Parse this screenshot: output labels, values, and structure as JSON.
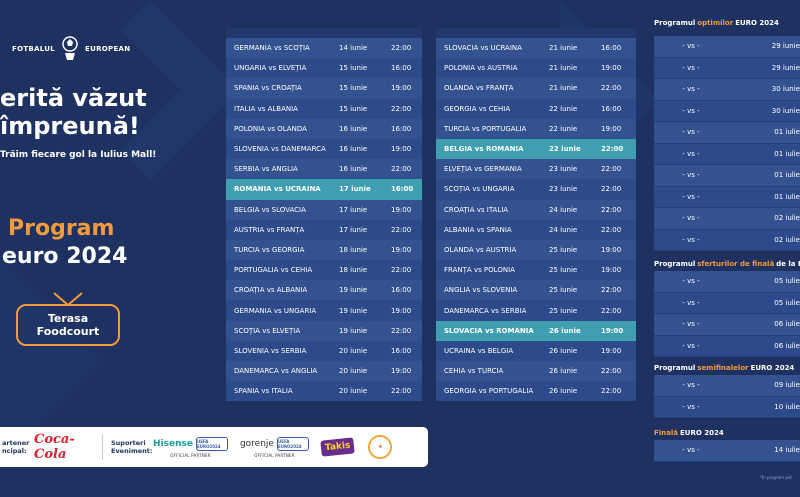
{
  "brand": {
    "left": "FOTBALUL",
    "right": "EUROPEAN"
  },
  "hero": {
    "line1": "erită văzut",
    "line2": "împreună!",
    "sub": "Trăim fiecare gol la Iulius Mall!",
    "program": "Program",
    "euro": "euro 2024",
    "venue_line1": "Terasa",
    "venue_line2": "Foodcourt"
  },
  "sponsors": {
    "principal_line1": "artener",
    "principal_line2": "ncipal:",
    "principal_name": "Coca-Cola",
    "support_line1": "Suporteri",
    "support_line2": "Eveniment:",
    "hisense": "Hisense",
    "gorenje": "gorenje",
    "official": "OFFICIAL PARTNER",
    "euro_badge": "UEFA EURO2024",
    "takis": "Takis"
  },
  "group_left": [
    {
      "match": "GERMANIA vs SCOȚIA",
      "date": "14 iunie",
      "time": "22:00"
    },
    {
      "match": "UNGARIA vs ELVEȚIA",
      "date": "15 iunie",
      "time": "16:00"
    },
    {
      "match": "SPANIA vs CROAȚIA",
      "date": "15 iunie",
      "time": "19:00"
    },
    {
      "match": "ITALIA vs ALBANIA",
      "date": "15 iunie",
      "time": "22:00"
    },
    {
      "match": "POLONIA vs OLANDA",
      "date": "16 iunie",
      "time": "16:00"
    },
    {
      "match": "SLOVENIA vs DANEMARCA",
      "date": "16 iunie",
      "time": "19:00"
    },
    {
      "match": "SERBIA vs ANGLIA",
      "date": "16 iunie",
      "time": "22:00"
    },
    {
      "match": "ROMÂNIA vs UCRAINA",
      "date": "17 iunie",
      "time": "16:00",
      "highlight": true
    },
    {
      "match": "BELGIA vs SLOVACIA",
      "date": "17 iunie",
      "time": "19:00"
    },
    {
      "match": "AUSTRIA vs FRANȚA",
      "date": "17 iunie",
      "time": "22:00"
    },
    {
      "match": "TURCIA vs GEORGIA",
      "date": "18 iunie",
      "time": "19:00"
    },
    {
      "match": "PORTUGALIA vs CEHIA",
      "date": "18 iunie",
      "time": "22:00"
    },
    {
      "match": "CROAȚIA vs ALBANIA",
      "date": "19 iunie",
      "time": "16:00"
    },
    {
      "match": "GERMANIA vs UNGARIA",
      "date": "19 iunie",
      "time": "19:00"
    },
    {
      "match": "SCOȚIA vs ELVEȚIA",
      "date": "19 iunie",
      "time": "22:00"
    },
    {
      "match": "SLOVENIA vs SERBIA",
      "date": "20 iunie",
      "time": "16:00"
    },
    {
      "match": "DANEMARCA vs ANGLIA",
      "date": "20 iunie",
      "time": "19:00"
    },
    {
      "match": "SPANIA vs ITALIA",
      "date": "20 iunie",
      "time": "22:00"
    }
  ],
  "group_right": [
    {
      "match": "SLOVACIA vs UCRAINA",
      "date": "21 iunie",
      "time": "16:00"
    },
    {
      "match": "POLONIA vs AUSTRIA",
      "date": "21 iunie",
      "time": "19:00"
    },
    {
      "match": "OLANDA vs FRANȚA",
      "date": "21 iunie",
      "time": "22:00"
    },
    {
      "match": "GEORGIA vs CEHIA",
      "date": "22 iunie",
      "time": "16:00"
    },
    {
      "match": "TURCIA vs PORTUGALIA",
      "date": "22 iunie",
      "time": "19:00"
    },
    {
      "match": "BELGIA vs ROMÂNIA",
      "date": "22 iunie",
      "time": "22:00",
      "highlight": true
    },
    {
      "match": "ELVEȚIA vs GERMANIA",
      "date": "23 iunie",
      "time": "22:00"
    },
    {
      "match": "SCOȚIA vs UNGARIA",
      "date": "23 iunie",
      "time": "22:00"
    },
    {
      "match": "CROAȚIA vs ITALIA",
      "date": "24 iunie",
      "time": "22:00"
    },
    {
      "match": "ALBANIA vs SPANIA",
      "date": "24 iunie",
      "time": "22:00"
    },
    {
      "match": "OLANDA vs AUSTRIA",
      "date": "25 iunie",
      "time": "19:00"
    },
    {
      "match": "FRANȚA vs POLONIA",
      "date": "25 iunie",
      "time": "19:00"
    },
    {
      "match": "ANGLIA vs SLOVENIA",
      "date": "25 iunie",
      "time": "22:00"
    },
    {
      "match": "DANEMARCA vs SERBIA",
      "date": "25 iunie",
      "time": "22:00"
    },
    {
      "match": "SLOVACIA vs ROMÂNIA",
      "date": "26 iunie",
      "time": "19:00",
      "highlight": true
    },
    {
      "match": "UCRAINA vs BELGIA",
      "date": "26 iunie",
      "time": "19:00"
    },
    {
      "match": "CEHIA vs TURCIA",
      "date": "26 iunie",
      "time": "22:00"
    },
    {
      "match": "GEORGIA vs PORTUGALIA",
      "date": "26 iunie",
      "time": "22:00"
    }
  ],
  "ko": {
    "r16_title_a": "Programul",
    "r16_title_b": "optimilor",
    "r16_title_c": "EURO 2024",
    "r16": [
      {
        "vs": "- vs -",
        "date": "29 iunie"
      },
      {
        "vs": "- vs -",
        "date": "29 iunie"
      },
      {
        "vs": "- vs -",
        "date": "30 iunie"
      },
      {
        "vs": "- vs -",
        "date": "30 iunie"
      },
      {
        "vs": "- vs -",
        "date": "01 iulie"
      },
      {
        "vs": "- vs -",
        "date": "01 iulie"
      },
      {
        "vs": "- vs -",
        "date": "01 iulie"
      },
      {
        "vs": "- vs -",
        "date": "01 iulie"
      },
      {
        "vs": "- vs -",
        "date": "02 iulie"
      },
      {
        "vs": "- vs -",
        "date": "02 iulie"
      }
    ],
    "qf_title_a": "Programul",
    "qf_title_b": "sferturilor de finală",
    "qf_title_c": "de la EU",
    "qf": [
      {
        "vs": "- vs -",
        "date": "05 iulie"
      },
      {
        "vs": "- vs -",
        "date": "05 iulie"
      },
      {
        "vs": "- vs -",
        "date": "06 iulie"
      },
      {
        "vs": "- vs -",
        "date": "06 iulie"
      }
    ],
    "sf_title_a": "Programul",
    "sf_title_b": "semifinalelor",
    "sf_title_c": "EURO 2024",
    "sf": [
      {
        "vs": "- vs -",
        "date": "09 iulie"
      },
      {
        "vs": "- vs -",
        "date": "10 iulie"
      }
    ],
    "f_title_a": "Finală",
    "f_title_c": "EURO 2024",
    "final": [
      {
        "vs": "- vs -",
        "date": "14 iulie"
      }
    ],
    "note": "*În program pot"
  }
}
